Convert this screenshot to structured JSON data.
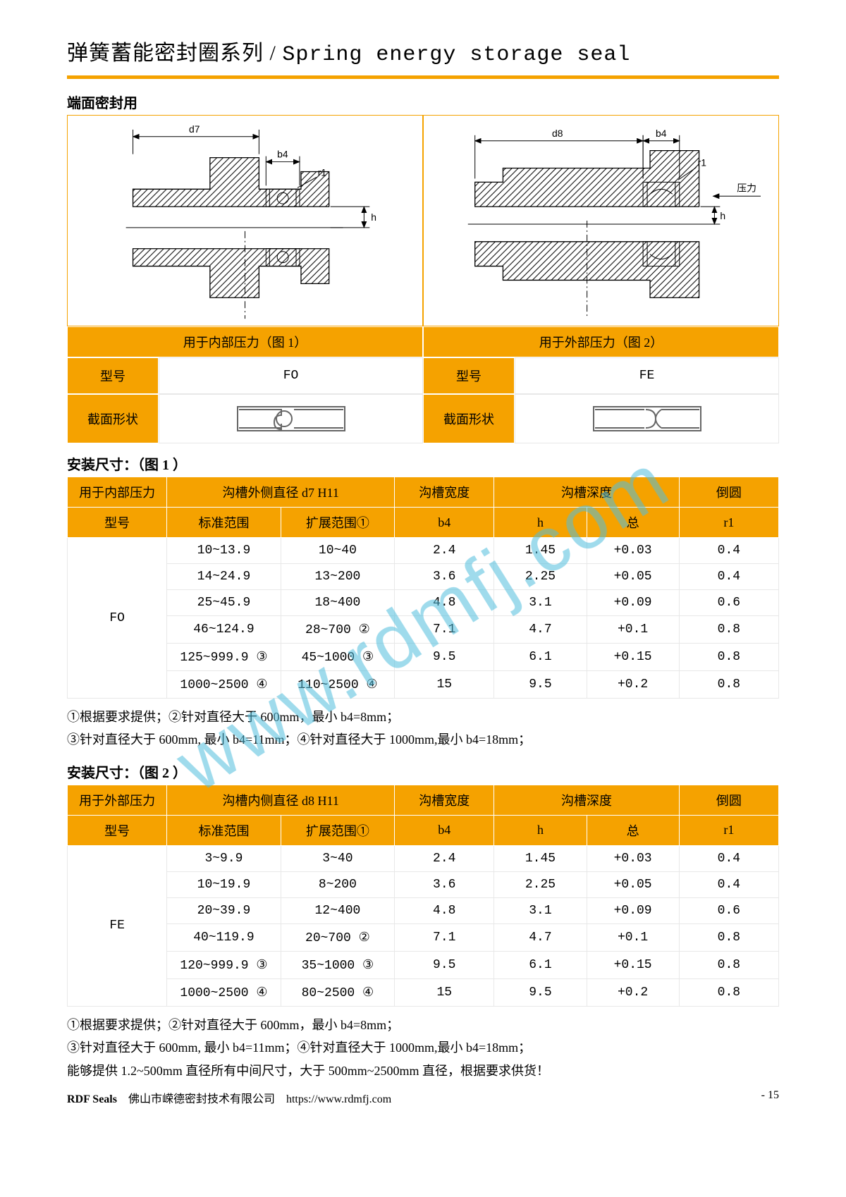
{
  "title_cn": "弹簧蓄能密封圈系列",
  "title_sep": " / ",
  "title_en": "Spring energy storage seal",
  "section_use": "端面密封用",
  "diagrams": {
    "left_caption": "用于内部压力（图 1）",
    "right_caption": "用于外部压力（图 2）",
    "left": {
      "d_label": "d7",
      "b_label": "b4",
      "r_label": "r1",
      "h_label": "h",
      "pressure_label": ""
    },
    "right": {
      "d_label": "d8",
      "b_label": "b4",
      "r_label": "r1",
      "h_label": "h",
      "pressure_label": "压力"
    }
  },
  "spec_rows": {
    "model_label": "型号",
    "cross_label": "截面形状",
    "left_model": "FO",
    "right_model": "FE"
  },
  "subtitle1": "安装尺寸：（图 1 ）",
  "table1": {
    "headers": {
      "use": "用于内部压力",
      "od": "沟槽外侧直径 d7 H11",
      "width": "沟槽宽度",
      "depth": "沟槽深度",
      "radius": "倒圆",
      "model": "型号",
      "std": "标准范围",
      "ext": "扩展范围①",
      "b4": "b4",
      "h": "h",
      "total": "总",
      "r1": "r1"
    },
    "model": "FO",
    "rows": [
      [
        "10~13.9",
        "10~40",
        "2.4",
        "1.45",
        "+0.03",
        "0.4"
      ],
      [
        "14~24.9",
        "13~200",
        "3.6",
        "2.25",
        "+0.05",
        "0.4"
      ],
      [
        "25~45.9",
        "18~400",
        "4.8",
        "3.1",
        "+0.09",
        "0.6"
      ],
      [
        "46~124.9",
        "28~700 ②",
        "7.1",
        "4.7",
        "+0.1",
        "0.8"
      ],
      [
        "125~999.9 ③",
        "45~1000 ③",
        "9.5",
        "6.1",
        "+0.15",
        "0.8"
      ],
      [
        "1000~2500 ④",
        "110~2500 ④",
        "15",
        "9.5",
        "+0.2",
        "0.8"
      ]
    ]
  },
  "notes1": {
    "l1": "①根据要求提供；②针对直径大于 600mm，最小 b4=8mm；",
    "l2": "③针对直径大于 600mm, 最小 b4=11mm；④针对直径大于 1000mm,最小 b4=18mm；"
  },
  "subtitle2": "安装尺寸：（图 2 ）",
  "table2": {
    "headers": {
      "use": "用于外部压力",
      "od": "沟槽内侧直径 d8 H11",
      "width": "沟槽宽度",
      "depth": "沟槽深度",
      "radius": "倒圆",
      "model": "型号",
      "std": "标准范围",
      "ext": "扩展范围①",
      "b4": "b4",
      "h": "h",
      "total": "总",
      "r1": "r1"
    },
    "model": "FE",
    "rows": [
      [
        "3~9.9",
        "3~40",
        "2.4",
        "1.45",
        "+0.03",
        "0.4"
      ],
      [
        "10~19.9",
        "8~200",
        "3.6",
        "2.25",
        "+0.05",
        "0.4"
      ],
      [
        "20~39.9",
        "12~400",
        "4.8",
        "3.1",
        "+0.09",
        "0.6"
      ],
      [
        "40~119.9",
        "20~700 ②",
        "7.1",
        "4.7",
        "+0.1",
        "0.8"
      ],
      [
        "120~999.9 ③",
        "35~1000 ③",
        "9.5",
        "6.1",
        "+0.15",
        "0.8"
      ],
      [
        "1000~2500 ④",
        "80~2500 ④",
        "15",
        "9.5",
        "+0.2",
        "0.8"
      ]
    ]
  },
  "notes2": {
    "l1": "①根据要求提供；②针对直径大于 600mm，最小 b4=8mm；",
    "l2": "③针对直径大于 600mm, 最小 b4=11mm；④针对直径大于 1000mm,最小 b4=18mm；",
    "l3": "能够提供 1.2~500mm 直径所有中间尺寸，大于 500mm~2500mm 直径，根据要求供货！"
  },
  "footer": {
    "brand": "RDF Seals",
    "company": "佛山市嵘德密封技术有限公司",
    "url": "https://www.rdmfj.com",
    "page": "- 15"
  },
  "watermark": "www.rdmfj.com",
  "colors": {
    "accent": "#f5a200",
    "border": "#e8e8e8",
    "wm": "rgba(80,190,220,0.55)"
  },
  "col_widths_pct": [
    14,
    16,
    16,
    14,
    13,
    13,
    14
  ]
}
